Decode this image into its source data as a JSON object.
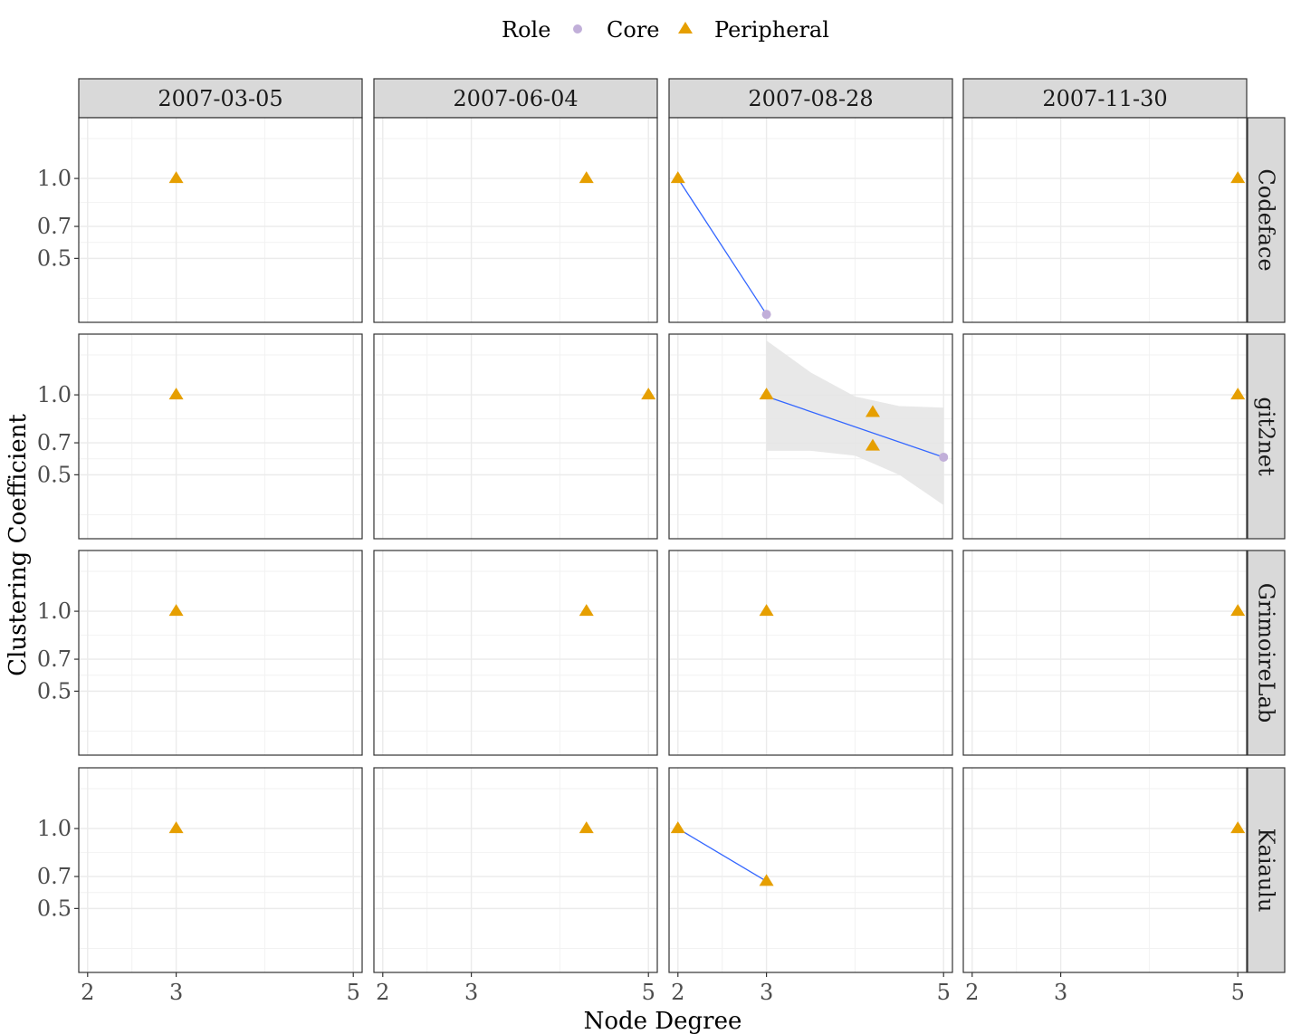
{
  "chart_data": {
    "type": "scatter",
    "xlabel": "Node Degree",
    "ylabel": "Clustering Coefficient",
    "legend": {
      "title": "Role",
      "placement": "top",
      "entries": [
        {
          "name": "Core",
          "shape": "circle",
          "color": "#c1afd9"
        },
        {
          "name": "Peripheral",
          "shape": "triangle",
          "color": "#e69f00"
        }
      ]
    },
    "columns": [
      "2007-03-05",
      "2007-06-04",
      "2007-08-28",
      "2007-11-30"
    ],
    "rows": [
      "Codeface",
      "git2net",
      "GrimoireLab",
      "Kaiaulu"
    ],
    "xlim": [
      1.9,
      5.1
    ],
    "ylim": [
      0.1,
      1.38
    ],
    "x_ticks": [
      2,
      3,
      5
    ],
    "y_ticks": [
      0.5,
      0.7,
      1.0
    ],
    "y_tick_labels": [
      "0.5",
      "0.7",
      "1.0"
    ],
    "x_tick_labels": [
      "2",
      "3",
      "5"
    ],
    "grid": true,
    "fit_color": "#3366ff",
    "band_color": "#e6e6e6",
    "panels": [
      {
        "row": 0,
        "col": 0,
        "points": [
          {
            "x": 3,
            "y": 1.0,
            "role": "Peripheral"
          }
        ]
      },
      {
        "row": 0,
        "col": 1,
        "points": [
          {
            "x": 4.3,
            "y": 1.0,
            "role": "Peripheral"
          }
        ]
      },
      {
        "row": 0,
        "col": 2,
        "points": [
          {
            "x": 2,
            "y": 1.0,
            "role": "Peripheral"
          },
          {
            "x": 3,
            "y": 0.15,
            "role": "Core"
          }
        ],
        "fit": [
          [
            2,
            1.0
          ],
          [
            3,
            0.15
          ]
        ]
      },
      {
        "row": 0,
        "col": 3,
        "points": [
          {
            "x": 5,
            "y": 1.0,
            "role": "Peripheral"
          }
        ]
      },
      {
        "row": 1,
        "col": 0,
        "points": [
          {
            "x": 3,
            "y": 1.0,
            "role": "Peripheral"
          }
        ]
      },
      {
        "row": 1,
        "col": 1,
        "points": [
          {
            "x": 5,
            "y": 1.0,
            "role": "Peripheral"
          }
        ]
      },
      {
        "row": 1,
        "col": 2,
        "points": [
          {
            "x": 3,
            "y": 1.0,
            "role": "Peripheral"
          },
          {
            "x": 4.2,
            "y": 0.89,
            "role": "Peripheral"
          },
          {
            "x": 4.2,
            "y": 0.68,
            "role": "Peripheral"
          },
          {
            "x": 5,
            "y": 0.61,
            "role": "Core"
          }
        ],
        "fit": [
          [
            3,
            0.99
          ],
          [
            5,
            0.61
          ]
        ],
        "band_upper": [
          [
            3,
            1.34
          ],
          [
            3.5,
            1.14
          ],
          [
            4,
            0.99
          ],
          [
            4.5,
            0.93
          ],
          [
            5,
            0.92
          ]
        ],
        "band_lower": [
          [
            3,
            0.65
          ],
          [
            3.5,
            0.65
          ],
          [
            4,
            0.62
          ],
          [
            4.5,
            0.5
          ],
          [
            5,
            0.31
          ]
        ]
      },
      {
        "row": 1,
        "col": 3,
        "points": [
          {
            "x": 5,
            "y": 1.0,
            "role": "Peripheral"
          }
        ]
      },
      {
        "row": 2,
        "col": 0,
        "points": [
          {
            "x": 3,
            "y": 1.0,
            "role": "Peripheral"
          }
        ]
      },
      {
        "row": 2,
        "col": 1,
        "points": [
          {
            "x": 4.3,
            "y": 1.0,
            "role": "Peripheral"
          }
        ]
      },
      {
        "row": 2,
        "col": 2,
        "points": [
          {
            "x": 3,
            "y": 1.0,
            "role": "Peripheral"
          }
        ]
      },
      {
        "row": 2,
        "col": 3,
        "points": [
          {
            "x": 5,
            "y": 1.0,
            "role": "Peripheral"
          }
        ]
      },
      {
        "row": 3,
        "col": 0,
        "points": [
          {
            "x": 3,
            "y": 1.0,
            "role": "Peripheral"
          }
        ]
      },
      {
        "row": 3,
        "col": 1,
        "points": [
          {
            "x": 4.3,
            "y": 1.0,
            "role": "Peripheral"
          }
        ]
      },
      {
        "row": 3,
        "col": 2,
        "points": [
          {
            "x": 2,
            "y": 1.0,
            "role": "Peripheral"
          },
          {
            "x": 3,
            "y": 0.67,
            "role": "Peripheral"
          }
        ],
        "fit": [
          [
            2,
            1.0
          ],
          [
            3,
            0.67
          ]
        ]
      },
      {
        "row": 3,
        "col": 3,
        "points": [
          {
            "x": 5,
            "y": 1.0,
            "role": "Peripheral"
          }
        ]
      }
    ]
  }
}
